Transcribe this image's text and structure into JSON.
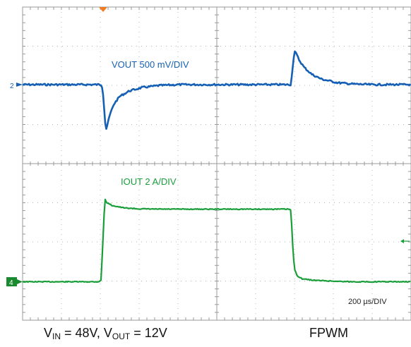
{
  "chart_data": {
    "type": "line",
    "title": "",
    "grid": true,
    "divisions": {
      "x": 10,
      "y": 8
    },
    "timebase_label": "200 µs/DIV",
    "x": {
      "unit": "µs",
      "range": [
        0,
        2000
      ]
    },
    "channels": [
      {
        "id": "2",
        "name": "VOUT 500 mV/DIV",
        "color": "#1560b5",
        "marker_label": "2",
        "unit": "mV",
        "baseline": 0,
        "range": [
          -1000,
          2000
        ],
        "points": [
          [
            0,
            0
          ],
          [
            404,
            0
          ],
          [
            410,
            -30
          ],
          [
            416,
            -150
          ],
          [
            420,
            -300
          ],
          [
            425,
            -480
          ],
          [
            430,
            -570
          ],
          [
            438,
            -500
          ],
          [
            450,
            -380
          ],
          [
            470,
            -250
          ],
          [
            500,
            -150
          ],
          [
            550,
            -80
          ],
          [
            620,
            -35
          ],
          [
            700,
            -12
          ],
          [
            800,
            0
          ],
          [
            1380,
            0
          ],
          [
            1385,
            80
          ],
          [
            1392,
            260
          ],
          [
            1400,
            430
          ],
          [
            1410,
            390
          ],
          [
            1425,
            310
          ],
          [
            1450,
            220
          ],
          [
            1490,
            130
          ],
          [
            1540,
            70
          ],
          [
            1620,
            25
          ],
          [
            1700,
            8
          ],
          [
            1800,
            0
          ],
          [
            2000,
            0
          ]
        ]
      },
      {
        "id": "4",
        "name": "IOUT 2 A/DIV",
        "color": "#1a9e3a",
        "marker_label": "4",
        "unit": "A",
        "baseline": 0,
        "range": [
          -2,
          10
        ],
        "points": [
          [
            0,
            0
          ],
          [
            390,
            0
          ],
          [
            404,
            0.15
          ],
          [
            412,
            3.5
          ],
          [
            420,
            7.0
          ],
          [
            425,
            8.4
          ],
          [
            433,
            8.1
          ],
          [
            460,
            7.8
          ],
          [
            520,
            7.55
          ],
          [
            600,
            7.45
          ],
          [
            700,
            7.42
          ],
          [
            1370,
            7.42
          ],
          [
            1380,
            7.35
          ],
          [
            1385,
            6.0
          ],
          [
            1390,
            4.0
          ],
          [
            1396,
            2.2
          ],
          [
            1402,
            1.2
          ],
          [
            1415,
            0.6
          ],
          [
            1440,
            0.3
          ],
          [
            1500,
            0.15
          ],
          [
            1600,
            0.06
          ],
          [
            1700,
            0
          ],
          [
            2000,
            0
          ]
        ]
      }
    ]
  },
  "markers": {
    "trigger_color": "#f07b20",
    "offset_arrow_color": "#1a9e3a"
  },
  "captions": {
    "left": {
      "v": "V",
      "in_sub": "IN",
      "in_val": " = 48V, ",
      "out_v": "V",
      "out_sub": "OUT",
      "out_val": " = 12V"
    },
    "right": "FPWM"
  }
}
